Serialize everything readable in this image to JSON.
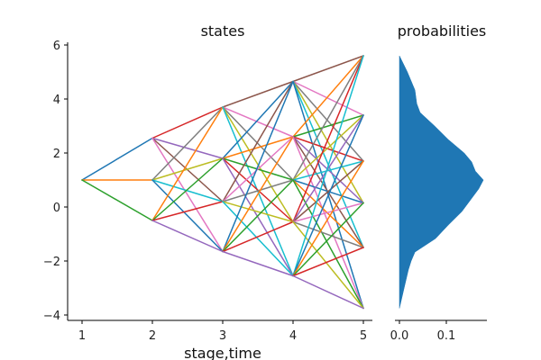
{
  "chart_data": [
    {
      "type": "line",
      "title": "states",
      "xlabel": "stage,time",
      "ylabel": "",
      "x_ticks": [
        1,
        2,
        3,
        4,
        5
      ],
      "y_ticks": [
        -4,
        -2,
        0,
        2,
        4,
        6
      ],
      "xlim": [
        0.85,
        5.15
      ],
      "ylim": [
        -4.1,
        6.1
      ],
      "grid": false,
      "description": "Scenario tree / lattice: every node at stage t connected to every node at stage t+1",
      "nodes": {
        "1": [
          1.0
        ],
        "2": [
          2.55,
          1.0,
          -0.5
        ],
        "3": [
          3.7,
          1.8,
          0.2,
          -1.65
        ],
        "4": [
          4.65,
          2.6,
          1.0,
          -0.55,
          -2.55
        ],
        "5": [
          5.6,
          3.4,
          1.7,
          0.15,
          -1.5,
          -3.75
        ]
      },
      "color_cycle": [
        "#1f77b4",
        "#ff7f0e",
        "#2ca02c",
        "#d62728",
        "#9467bd",
        "#8c564b",
        "#e377c2",
        "#7f7f7f",
        "#bcbd22",
        "#17becf"
      ]
    },
    {
      "type": "area",
      "title": "probabilities",
      "xlabel": "",
      "ylabel": "",
      "x_ticks": [
        0.0,
        0.1
      ],
      "x_tick_labels": [
        "0.0",
        "0.1"
      ],
      "xlim": [
        -0.005,
        0.19
      ],
      "orientation": "horizontal density (x = probability, y = state value, shared y axis)",
      "color": "#1f77b4",
      "profile": {
        "y": [
          5.6,
          5.0,
          4.33,
          3.83,
          3.5,
          3.0,
          2.5,
          2.0,
          1.67,
          1.33,
          1.0,
          0.67,
          0.27,
          -0.17,
          -0.67,
          -1.17,
          -1.67,
          -2.0,
          -2.33,
          -3.0,
          -3.75
        ],
        "x": [
          0.0,
          0.017,
          0.033,
          0.037,
          0.044,
          0.075,
          0.104,
          0.138,
          0.154,
          0.162,
          0.179,
          0.169,
          0.152,
          0.133,
          0.104,
          0.077,
          0.033,
          0.025,
          0.019,
          0.01,
          0.0
        ]
      }
    }
  ],
  "labels": {
    "states_title": "states",
    "prob_title": "probabilities",
    "xlabel": "stage,time"
  }
}
